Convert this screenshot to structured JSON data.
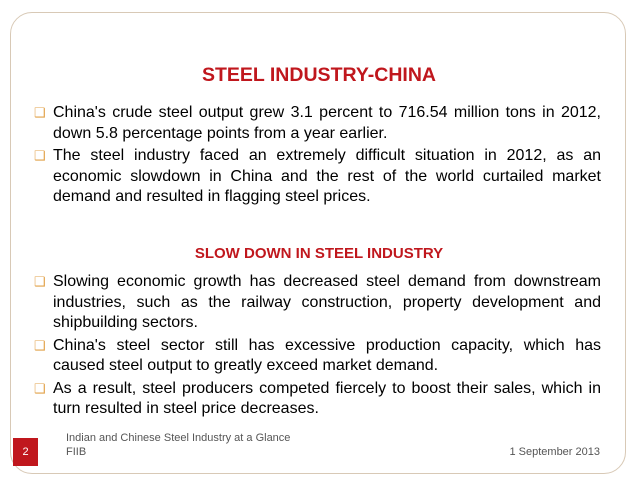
{
  "slide": {
    "title": "STEEL INDUSTRY-CHINA",
    "bullets_1": [
      "China's crude steel output grew 3.1 percent to 716.54 million tons in 2012, down 5.8 percentage points from a year earlier.",
      "The steel industry faced an extremely difficult situation in 2012, as an economic slowdown in China and the rest of the world curtailed market demand and resulted in flagging steel prices."
    ],
    "subtitle": "SLOW DOWN IN STEEL INDUSTRY",
    "bullets_2": [
      "Slowing economic growth has decreased steel demand from downstream industries, such as the railway construction, property development and shipbuilding sectors.",
      "China's steel sector still has excessive production capacity, which has caused steel output to greatly exceed market demand.",
      "As a result, steel producers competed fiercely to boost their sales, which in turn resulted in steel price decreases."
    ],
    "bullet_glyph": "❑"
  },
  "footer": {
    "slide_number": "2",
    "presentation_title": "Indian and Chinese Steel Industry at a Glance",
    "org": "FIIB",
    "date": "1 September 2013"
  },
  "colors": {
    "accent": "#c0171d",
    "bullet": "#e2a24a"
  }
}
